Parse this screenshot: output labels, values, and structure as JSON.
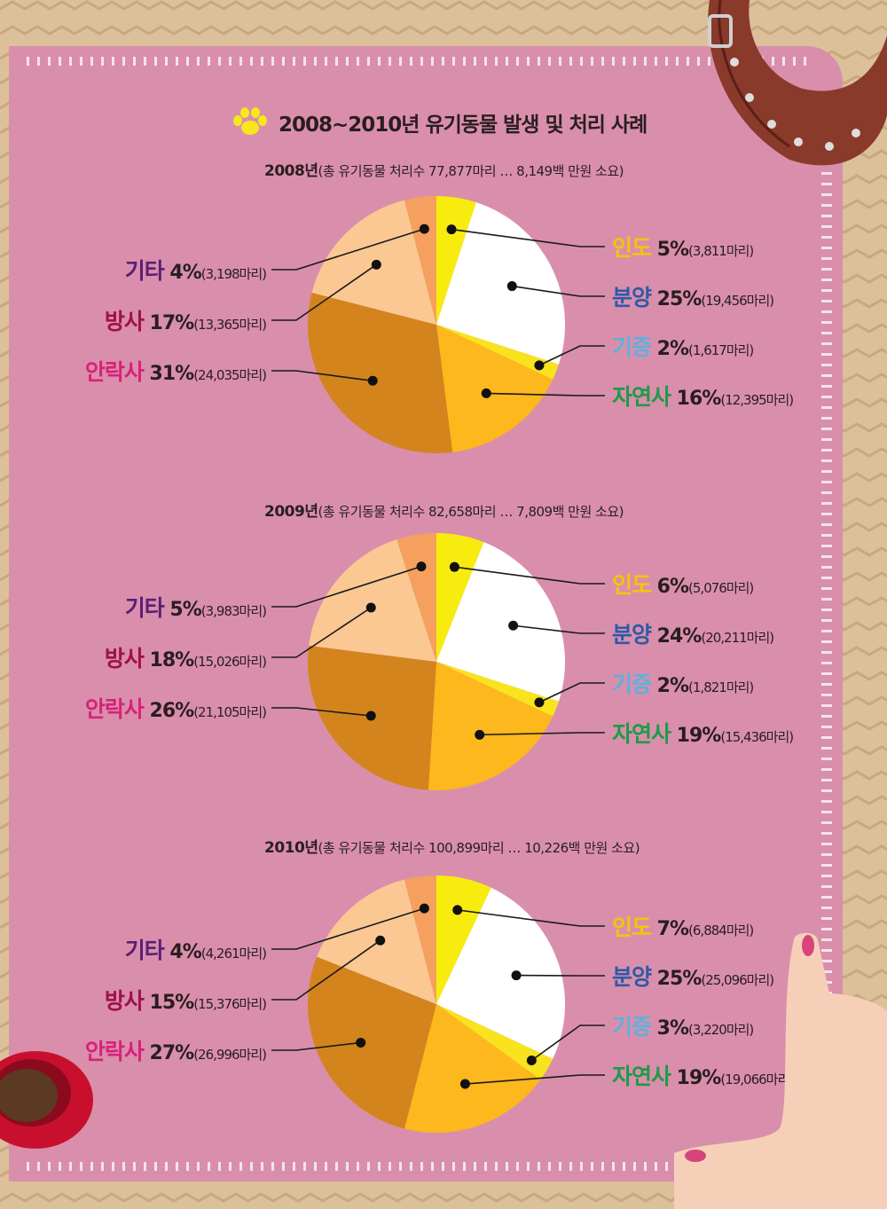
{
  "title": "2008~2010년 유기동물 발생 및 처리 사례",
  "colors": {
    "인도": "#f8ec0f",
    "분양": "#ffffff",
    "기증": "#f9e21e",
    "자연사": "#fcb81c",
    "안락사": "#d4841c",
    "방사": "#fbc894",
    "기타": "#f5a05e"
  },
  "label_colors": {
    "인도": "#f5c30e",
    "분양": "#2e5aa8",
    "기증": "#5fb0dc",
    "자연사": "#1e9a4a",
    "안락사": "#d8207a",
    "방사": "#a0104a",
    "기타": "#5a1e78"
  },
  "chart_data": [
    {
      "type": "pie",
      "year": "2008년",
      "subtitle": "(총 유기동물 처리수 77,877마리 … 8,149백 만원 소요)",
      "slices": [
        {
          "name": "인도",
          "value": 5,
          "count": "(3,811마리)"
        },
        {
          "name": "분양",
          "value": 25,
          "count": "(19,456마리)"
        },
        {
          "name": "기증",
          "value": 2,
          "count": "(1,617마리)"
        },
        {
          "name": "자연사",
          "value": 16,
          "count": "(12,395마리)"
        },
        {
          "name": "안락사",
          "value": 31,
          "count": "(24,035마리)"
        },
        {
          "name": "방사",
          "value": 17,
          "count": "(13,365마리)"
        },
        {
          "name": "기타",
          "value": 4,
          "count": "(3,198마리)"
        }
      ]
    },
    {
      "type": "pie",
      "year": "2009년",
      "subtitle": "(총 유기동물 처리수 82,658마리 … 7,809백 만원 소요)",
      "slices": [
        {
          "name": "인도",
          "value": 6,
          "count": "(5,076마리)"
        },
        {
          "name": "분양",
          "value": 24,
          "count": "(20,211마리)"
        },
        {
          "name": "기증",
          "value": 2,
          "count": "(1,821마리)"
        },
        {
          "name": "자연사",
          "value": 19,
          "count": "(15,436마리)"
        },
        {
          "name": "안락사",
          "value": 26,
          "count": "(21,105마리)"
        },
        {
          "name": "방사",
          "value": 18,
          "count": "(15,026마리)"
        },
        {
          "name": "기타",
          "value": 5,
          "count": "(3,983마리)"
        }
      ]
    },
    {
      "type": "pie",
      "year": "2010년",
      "subtitle": "(총 유기동물 처리수 100,899마리 … 10,226백 만원 소요)",
      "slices": [
        {
          "name": "인도",
          "value": 7,
          "count": "(6,884마리)"
        },
        {
          "name": "분양",
          "value": 25,
          "count": "(25,096마리)"
        },
        {
          "name": "기증",
          "value": 3,
          "count": "(3,220마리)"
        },
        {
          "name": "자연사",
          "value": 19,
          "count": "(19,066마리)"
        },
        {
          "name": "안락사",
          "value": 27,
          "count": "(26,996마리)"
        },
        {
          "name": "방사",
          "value": 15,
          "count": "(15,376마리)"
        },
        {
          "name": "기타",
          "value": 4,
          "count": "(4,261마리)"
        }
      ]
    }
  ]
}
